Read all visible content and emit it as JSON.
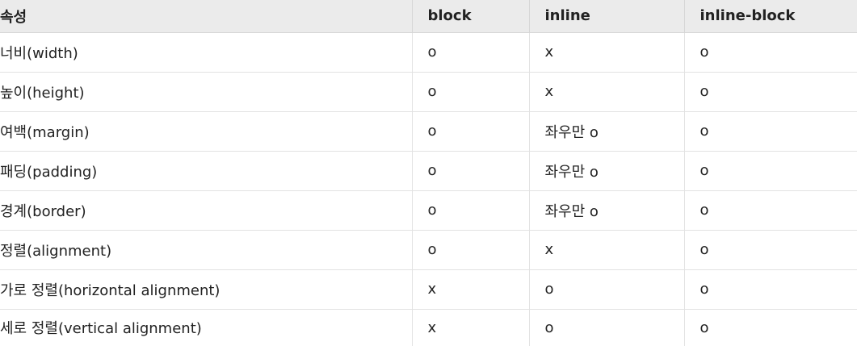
{
  "table": {
    "headers": [
      "속성",
      "block",
      "inline",
      "inline-block"
    ],
    "rows": [
      [
        "너비(width)",
        "o",
        "x",
        "o"
      ],
      [
        "높이(height)",
        "o",
        "x",
        "o"
      ],
      [
        "여백(margin)",
        "o",
        "좌우만 o",
        "o"
      ],
      [
        "패딩(padding)",
        "o",
        "좌우만 o",
        "o"
      ],
      [
        "경계(border)",
        "o",
        "좌우만 o",
        "o"
      ],
      [
        "정렬(alignment)",
        "o",
        "x",
        "o"
      ],
      [
        "가로 정렬(horizontal alignment)",
        "x",
        "o",
        "o"
      ],
      [
        "세로 정렬(vertical alignment)",
        "x",
        "o",
        "o"
      ]
    ]
  }
}
